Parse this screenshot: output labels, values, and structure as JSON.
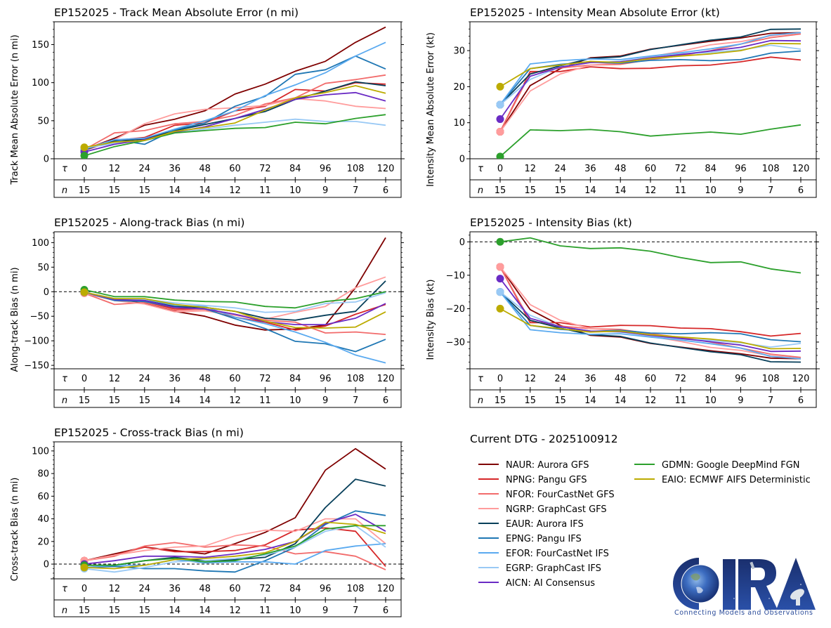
{
  "page": {
    "dtg_label": "Current DTG - 2025100912"
  },
  "models": [
    {
      "id": "NAUR",
      "label": "NAUR: Aurora GFS",
      "color": "#7f0000"
    },
    {
      "id": "NPNG",
      "label": "NPNG: Pangu GFS",
      "color": "#d62728"
    },
    {
      "id": "NFOR",
      "label": "NFOR: FourCastNet GFS",
      "color": "#f26b6b"
    },
    {
      "id": "NGRP",
      "label": "NGRP: GraphCast GFS",
      "color": "#ff9c9c"
    },
    {
      "id": "EAUR",
      "label": "EAUR: Aurora IFS",
      "color": "#073f5a"
    },
    {
      "id": "EPNG",
      "label": "EPNG: Pangu IFS",
      "color": "#1f77b4"
    },
    {
      "id": "EFOR",
      "label": "EFOR: FourCastNet IFS",
      "color": "#5aaaf0"
    },
    {
      "id": "EGRP",
      "label": "EGRP: GraphCast IFS",
      "color": "#99c9f5"
    },
    {
      "id": "AICN",
      "label": "AICN: AI Consensus",
      "color": "#6a2bc4"
    },
    {
      "id": "GDMN",
      "label": "GDMN: Google DeepMind FGN",
      "color": "#2ca02c"
    },
    {
      "id": "EAIO",
      "label": "EAIO: ECMWF AIFS Deterministic",
      "color": "#bcab00"
    }
  ],
  "logo": {
    "text": "CIRA",
    "subtitle": "Connecting Models and Observations"
  },
  "chart_data": [
    {
      "id": "track_mae",
      "type": "line",
      "title": "EP152025 - Track Mean Absolute Error (n mi)",
      "ylabel": "Track Mean Absolute Error (n mi)",
      "xlabel": "",
      "tau_label": "τ",
      "n_label": "n",
      "x": [
        0,
        12,
        24,
        36,
        48,
        60,
        72,
        84,
        96,
        108,
        120
      ],
      "n": [
        15,
        15,
        15,
        14,
        14,
        12,
        11,
        10,
        9,
        7,
        6
      ],
      "ylim": [
        0,
        180
      ],
      "yticks": [
        0,
        50,
        100,
        150
      ],
      "zero_line": false,
      "grid": false,
      "series": [
        {
          "name": "NAUR",
          "values": [
            12,
            27,
            44,
            52,
            63,
            85,
            98,
            115,
            128,
            153,
            173
          ]
        },
        {
          "name": "NPNG",
          "values": [
            11,
            24,
            28,
            44,
            47,
            63,
            69,
            91,
            89,
            100,
            98
          ]
        },
        {
          "name": "NFOR",
          "values": [
            12,
            34,
            37,
            46,
            49,
            57,
            72,
            80,
            99,
            104,
            110
          ]
        },
        {
          "name": "NGRP",
          "values": [
            13,
            25,
            46,
            59,
            65,
            67,
            70,
            79,
            76,
            69,
            66
          ]
        },
        {
          "name": "EAUR",
          "values": [
            12,
            23,
            26,
            37,
            45,
            53,
            62,
            78,
            89,
            101,
            96
          ]
        },
        {
          "name": "EPNG",
          "values": [
            12,
            25,
            19,
            38,
            47,
            69,
            82,
            111,
            117,
            135,
            118
          ]
        },
        {
          "name": "EFOR",
          "values": [
            13,
            25,
            27,
            39,
            50,
            63,
            83,
            97,
            113,
            135,
            153
          ]
        },
        {
          "name": "EGRP",
          "values": [
            14,
            20,
            24,
            34,
            39,
            44,
            48,
            52,
            49,
            49,
            44
          ]
        },
        {
          "name": "AICN",
          "values": [
            9,
            19,
            25,
            35,
            42,
            53,
            65,
            78,
            84,
            87,
            76
          ]
        },
        {
          "name": "GDMN",
          "values": [
            4,
            16,
            24,
            34,
            37,
            40,
            41,
            48,
            46,
            53,
            58
          ]
        },
        {
          "name": "EAIO",
          "values": [
            15,
            22,
            24,
            36,
            41,
            47,
            64,
            80,
            87,
            96,
            86
          ]
        }
      ]
    },
    {
      "id": "intensity_mae",
      "type": "line",
      "title": "EP152025 - Intensity Mean Absolute Error (kt)",
      "ylabel": "Intensity Mean Absolute Error (kt)",
      "xlabel": "",
      "tau_label": "τ",
      "n_label": "n",
      "x": [
        0,
        12,
        24,
        36,
        48,
        60,
        72,
        84,
        96,
        108,
        120
      ],
      "n": [
        15,
        15,
        15,
        14,
        14,
        12,
        11,
        10,
        9,
        7,
        6
      ],
      "ylim": [
        0,
        38
      ],
      "yticks": [
        0,
        10,
        20,
        30
      ],
      "zero_line": false,
      "grid": false,
      "series": [
        {
          "name": "NAUR",
          "values": [
            7.5,
            20.3,
            25.0,
            28.0,
            28.5,
            30.4,
            31.5,
            32.6,
            33.5,
            34.8,
            35.0
          ]
        },
        {
          "name": "NPNG",
          "values": [
            7.5,
            24.2,
            24.2,
            25.5,
            25.0,
            25.1,
            25.8,
            26.0,
            26.9,
            28.2,
            27.4
          ]
        },
        {
          "name": "NFOR",
          "values": [
            7.5,
            23.7,
            25.2,
            26.0,
            26.2,
            27.5,
            28.6,
            30.0,
            31.8,
            33.6,
            34.6
          ]
        },
        {
          "name": "NGRP",
          "values": [
            7.5,
            18.8,
            23.5,
            26.0,
            26.6,
            28.3,
            29.8,
            31.6,
            32.5,
            34.1,
            34.9
          ]
        },
        {
          "name": "EAUR",
          "values": [
            15,
            23.5,
            25.8,
            27.8,
            28.3,
            30.3,
            31.6,
            32.9,
            33.8,
            35.9,
            36.0
          ]
        },
        {
          "name": "EPNG",
          "values": [
            15,
            25.0,
            26.2,
            26.8,
            26.5,
            27.3,
            27.5,
            27.2,
            27.5,
            29.3,
            29.9
          ]
        },
        {
          "name": "EFOR",
          "values": [
            15,
            26.3,
            27.2,
            27.7,
            27.5,
            28.5,
            29.4,
            30.5,
            31.8,
            34.3,
            35.0
          ]
        },
        {
          "name": "EGRP",
          "values": [
            15,
            22.0,
            25.5,
            26.7,
            27.0,
            28.1,
            29.1,
            29.5,
            30.2,
            31.5,
            30.4
          ]
        },
        {
          "name": "AICN",
          "values": [
            11,
            22.9,
            25.4,
            26.7,
            26.9,
            28.0,
            28.9,
            29.9,
            30.9,
            32.8,
            32.7
          ]
        },
        {
          "name": "GDMN",
          "values": [
            0.6,
            8.0,
            7.8,
            8.1,
            7.5,
            6.3,
            6.9,
            7.4,
            6.8,
            8.2,
            9.4
          ]
        },
        {
          "name": "EAIO",
          "values": [
            20,
            25.0,
            26.0,
            27.0,
            26.7,
            27.8,
            28.5,
            29.1,
            30.0,
            32.0,
            31.9
          ]
        }
      ]
    },
    {
      "id": "along_track_bias",
      "type": "line",
      "title": "EP152025 - Along-track Bias (n mi)",
      "ylabel": "Along-track Bias (n mi)",
      "xlabel": "",
      "tau_label": "τ",
      "n_label": "n",
      "x": [
        0,
        12,
        24,
        36,
        48,
        60,
        72,
        84,
        96,
        108,
        120
      ],
      "n": [
        15,
        15,
        15,
        14,
        14,
        12,
        11,
        10,
        9,
        7,
        6
      ],
      "ylim": [
        -157,
        122
      ],
      "yticks": [
        -150,
        -100,
        -50,
        0,
        50,
        100
      ],
      "zero_line": true,
      "grid": false,
      "series": [
        {
          "name": "NAUR",
          "values": [
            -2,
            -15,
            -24,
            -40,
            -50,
            -68,
            -78,
            -76,
            -68,
            8,
            110
          ]
        },
        {
          "name": "NPNG",
          "values": [
            -2,
            -15,
            -20,
            -35,
            -36,
            -52,
            -62,
            -78,
            -70,
            -46,
            -26
          ]
        },
        {
          "name": "NFOR",
          "values": [
            -3,
            -26,
            -22,
            -38,
            -36,
            -46,
            -58,
            -62,
            -84,
            -82,
            -87
          ]
        },
        {
          "name": "NGRP",
          "values": [
            -3,
            -18,
            -25,
            -41,
            -39,
            -48,
            -56,
            -42,
            -30,
            8,
            30
          ]
        },
        {
          "name": "EAUR",
          "values": [
            -1,
            -14,
            -18,
            -30,
            -32,
            -40,
            -54,
            -58,
            -48,
            -40,
            22
          ]
        },
        {
          "name": "EPNG",
          "values": [
            -1,
            -18,
            -20,
            -32,
            -35,
            -55,
            -75,
            -101,
            -106,
            -122,
            -97
          ]
        },
        {
          "name": "EFOR",
          "values": [
            -1,
            -16,
            -15,
            -28,
            -30,
            -52,
            -65,
            -82,
            -103,
            -129,
            -145
          ]
        },
        {
          "name": "EGRP",
          "values": [
            -1,
            -14,
            -15,
            -23,
            -28,
            -33,
            -42,
            -40,
            -24,
            -21,
            -2
          ]
        },
        {
          "name": "AICN",
          "values": [
            -1,
            -16,
            -18,
            -32,
            -35,
            -46,
            -61,
            -67,
            -67,
            -54,
            -24
          ]
        },
        {
          "name": "GDMN",
          "values": [
            4,
            -10,
            -10,
            -17,
            -20,
            -21,
            -30,
            -33,
            -20,
            -14,
            0
          ]
        },
        {
          "name": "EAIO",
          "values": [
            -1,
            -14,
            -14,
            -26,
            -32,
            -40,
            -60,
            -73,
            -74,
            -72,
            -41
          ]
        }
      ]
    },
    {
      "id": "intensity_bias",
      "type": "line",
      "title": "EP152025 - Intensity Bias (kt)",
      "ylabel": "Intensity Bias (kt)",
      "xlabel": "",
      "tau_label": "τ",
      "n_label": "n",
      "x": [
        0,
        12,
        24,
        36,
        48,
        60,
        72,
        84,
        96,
        108,
        120
      ],
      "n": [
        15,
        15,
        15,
        14,
        14,
        12,
        11,
        10,
        9,
        7,
        6
      ],
      "ylim": [
        -38,
        3
      ],
      "yticks": [
        -30,
        -20,
        -10,
        0
      ],
      "zero_line": true,
      "grid": false,
      "series": [
        {
          "name": "NAUR",
          "values": [
            -7.5,
            -20.3,
            -25.0,
            -28.0,
            -28.5,
            -30.4,
            -31.5,
            -32.6,
            -33.5,
            -34.8,
            -35.0
          ]
        },
        {
          "name": "NPNG",
          "values": [
            -7.5,
            -24.2,
            -24.2,
            -25.5,
            -25.0,
            -25.1,
            -25.8,
            -26.0,
            -26.9,
            -28.2,
            -27.4
          ]
        },
        {
          "name": "NFOR",
          "values": [
            -7.5,
            -23.7,
            -25.2,
            -26.0,
            -26.2,
            -27.5,
            -28.6,
            -30.0,
            -31.8,
            -33.6,
            -34.6
          ]
        },
        {
          "name": "NGRP",
          "values": [
            -7.5,
            -18.8,
            -23.5,
            -26.0,
            -26.6,
            -28.3,
            -29.8,
            -31.6,
            -32.5,
            -34.1,
            -34.9
          ]
        },
        {
          "name": "EAUR",
          "values": [
            -15,
            -23.5,
            -25.8,
            -27.8,
            -28.3,
            -30.3,
            -31.6,
            -32.9,
            -33.8,
            -35.9,
            -36.0
          ]
        },
        {
          "name": "EPNG",
          "values": [
            -15,
            -25.0,
            -26.2,
            -26.8,
            -26.5,
            -27.3,
            -27.5,
            -27.2,
            -27.5,
            -29.3,
            -29.9
          ]
        },
        {
          "name": "EFOR",
          "values": [
            -15,
            -26.3,
            -27.2,
            -27.7,
            -27.5,
            -28.5,
            -29.4,
            -30.5,
            -31.8,
            -34.3,
            -35.0
          ]
        },
        {
          "name": "EGRP",
          "values": [
            -15,
            -22.0,
            -25.5,
            -26.7,
            -27.0,
            -28.1,
            -29.1,
            -29.5,
            -30.2,
            -31.5,
            -30.4
          ]
        },
        {
          "name": "AICN",
          "values": [
            -11,
            -22.9,
            -25.4,
            -26.7,
            -26.9,
            -28.0,
            -28.9,
            -29.9,
            -30.9,
            -32.8,
            -32.7
          ]
        },
        {
          "name": "GDMN",
          "values": [
            0,
            1.2,
            -1.2,
            -2.0,
            -1.8,
            -2.8,
            -4.7,
            -6.2,
            -6.0,
            -8.1,
            -9.3
          ]
        },
        {
          "name": "EAIO",
          "values": [
            -20,
            -25.0,
            -26.0,
            -27.0,
            -26.7,
            -27.8,
            -28.5,
            -29.1,
            -30.0,
            -32.0,
            -31.9
          ]
        }
      ]
    },
    {
      "id": "cross_track_bias",
      "type": "line",
      "title": "EP152025 - Cross-track Bias (n mi)",
      "ylabel": "Cross-track Bias (n mi)",
      "xlabel": "",
      "tau_label": "τ",
      "n_label": "n",
      "x": [
        0,
        12,
        24,
        36,
        48,
        60,
        72,
        84,
        96,
        108,
        120
      ],
      "n": [
        15,
        15,
        15,
        14,
        14,
        12,
        11,
        10,
        9,
        7,
        6
      ],
      "ylim": [
        -13,
        108
      ],
      "yticks": [
        0,
        20,
        40,
        60,
        80,
        100
      ],
      "zero_line": true,
      "grid": false,
      "series": [
        {
          "name": "NAUR",
          "values": [
            3,
            9,
            15,
            12,
            9,
            18,
            28,
            41,
            83,
            102,
            84
          ]
        },
        {
          "name": "NPNG",
          "values": [
            3,
            8,
            15,
            11,
            11,
            12,
            17,
            30,
            32,
            29,
            -2
          ]
        },
        {
          "name": "NFOR",
          "values": [
            3,
            7,
            16,
            19,
            15,
            17,
            16,
            9,
            11,
            7,
            -5
          ]
        },
        {
          "name": "NGRP",
          "values": [
            3,
            8,
            12,
            15,
            16,
            25,
            30,
            29,
            40,
            40,
            18
          ]
        },
        {
          "name": "EAUR",
          "values": [
            -1,
            -1,
            3,
            6,
            3,
            4,
            6,
            18,
            50,
            75,
            69
          ]
        },
        {
          "name": "EPNG",
          "values": [
            -3,
            -2,
            -4,
            -4,
            -6,
            -7,
            3,
            15,
            35,
            47,
            43
          ]
        },
        {
          "name": "EFOR",
          "values": [
            -3,
            -1,
            -1,
            4,
            1,
            2,
            2,
            0,
            12,
            16,
            18
          ]
        },
        {
          "name": "EGRP",
          "values": [
            -4,
            -7,
            -3,
            2,
            3,
            5,
            8,
            15,
            29,
            34,
            15
          ]
        },
        {
          "name": "AICN",
          "values": [
            0,
            3,
            7,
            7,
            6,
            9,
            13,
            20,
            36,
            44,
            29
          ]
        },
        {
          "name": "GDMN",
          "values": [
            -1,
            -1,
            3,
            5,
            2,
            3,
            9,
            16,
            31,
            34,
            34
          ]
        },
        {
          "name": "EAIO",
          "values": [
            -3,
            -4,
            -1,
            4,
            5,
            7,
            10,
            20,
            37,
            35,
            27
          ]
        }
      ]
    }
  ]
}
